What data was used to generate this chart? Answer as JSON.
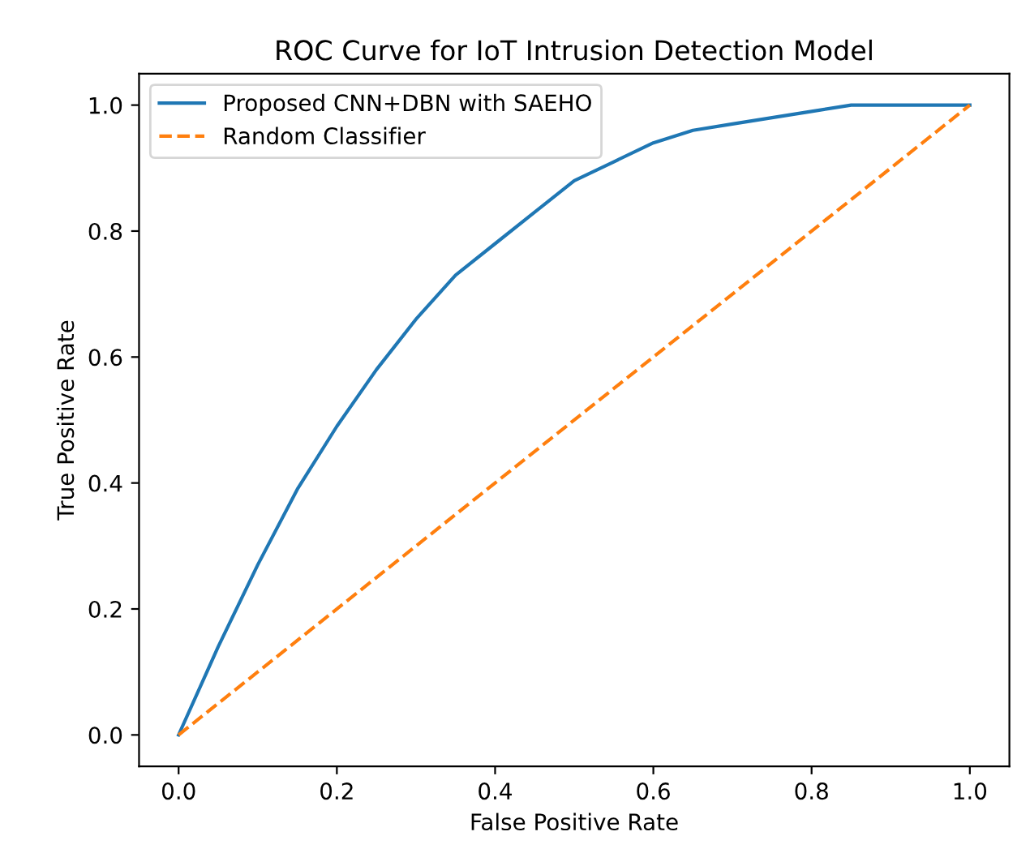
{
  "chart_data": {
    "type": "line",
    "title": "ROC Curve for IoT Intrusion Detection Model",
    "xlabel": "False Positive Rate",
    "ylabel": "True Positive Rate",
    "series": [
      {
        "name": "Proposed CNN+DBN with SAEHO",
        "color": "#1f77b4",
        "line_style": "solid",
        "x": [
          0,
          0.05,
          0.1,
          0.15,
          0.2,
          0.25,
          0.3,
          0.35,
          0.4,
          0.45,
          0.5,
          0.55,
          0.6,
          0.65,
          0.7,
          0.75,
          0.8,
          0.85,
          0.9,
          0.95,
          1.0
        ],
        "values": [
          0,
          0.14,
          0.27,
          0.39,
          0.49,
          0.58,
          0.66,
          0.73,
          0.78,
          0.83,
          0.88,
          0.91,
          0.94,
          0.96,
          0.97,
          0.98,
          0.99,
          1.0,
          1.0,
          1.0,
          1.0
        ]
      },
      {
        "name": "Random Classifier",
        "color": "#ff7f0e",
        "line_style": "dashed",
        "x": [
          0,
          1
        ],
        "values": [
          0,
          1
        ]
      }
    ],
    "xlim": [
      -0.05,
      1.05
    ],
    "ylim": [
      -0.05,
      1.05
    ],
    "xticks": [
      {
        "value": 0,
        "label": "0.0"
      },
      0.2,
      0.4,
      0.6,
      0.8,
      {
        "value": 1,
        "label": "1.0"
      }
    ],
    "yticks": [
      {
        "value": 0,
        "label": "0.0"
      },
      0.2,
      0.4,
      0.6,
      0.8,
      {
        "value": 1,
        "label": "1.0"
      }
    ],
    "legend": "top left",
    "grid": false,
    "marker": "none"
  }
}
